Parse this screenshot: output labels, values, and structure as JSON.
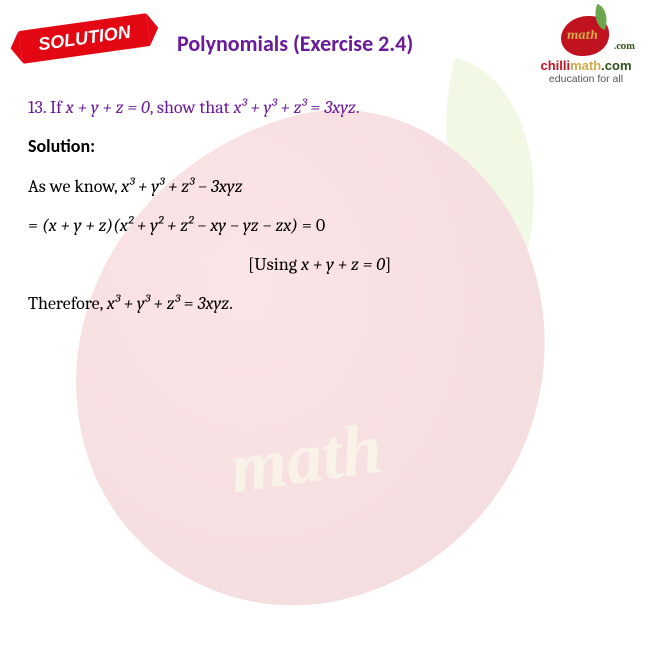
{
  "header": {
    "badge_label": "SOLUTION",
    "title": "Polynomials (Exercise 2.4)"
  },
  "logo": {
    "math_text": "math",
    "com_text": ".com",
    "domain_chilli": "chilli",
    "domain_math": "math",
    "domain_com": ".com",
    "tagline": "education for all"
  },
  "watermark": {
    "text": "math"
  },
  "problem": {
    "number": "13.",
    "prefix": "If ",
    "condition": "x + y + z = 0",
    "middle": ", show that ",
    "claim_lhs": "x³ + y³ + z³",
    "claim_eq": " = ",
    "claim_rhs": "3xyz",
    "end": "."
  },
  "solution": {
    "label": "Solution:",
    "line1_prefix": "As we know,  ",
    "line1_expr": "x³ + y³ + z³ − 3xyz",
    "line2_prefix": "= ",
    "line2_factor1": "(x + y + z)",
    "line2_factor2": "(x² + y² + z² − xy − yz − zx)",
    "line2_result": " = 0",
    "line3_note_open": "[Using ",
    "line3_note_expr": "x + y + z = 0",
    "line3_note_close": "]",
    "line4_prefix": "Therefore, ",
    "line4_lhs": "x³ + y³ + z³",
    "line4_eq": " = ",
    "line4_rhs": "3xyz",
    "line4_end": "."
  },
  "colors": {
    "purple": "#6a1b9a",
    "red": "#e30613",
    "chili_red": "#c1121f",
    "gold": "#d4a84b",
    "green": "#2d5016"
  }
}
